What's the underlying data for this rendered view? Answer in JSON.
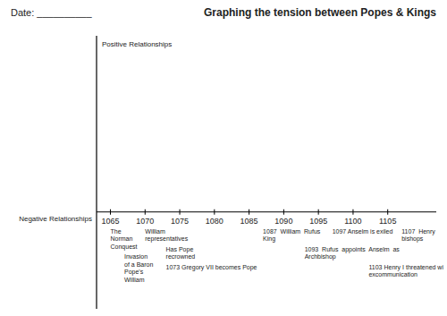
{
  "chart_data": {
    "type": "timeline",
    "title": "Graphing the tension between Popes & Kings",
    "subtitle": "Date: __________",
    "positive_label": "Positive Relationships",
    "negative_label": "Negative Relationships",
    "xlim": [
      1063,
      1112
    ],
    "xticks": [
      1065,
      1070,
      1075,
      1080,
      1085,
      1090,
      1095,
      1100,
      1105
    ],
    "ylim": [
      -0.55,
      1.0
    ],
    "tick_labels": "x",
    "color": "#000000",
    "annotations": [
      {
        "x": 1065,
        "text": "The\nNorman\nConquest"
      },
      {
        "x": 1067,
        "text": "Invasion\nof a Baron\nPope's\nWilliam"
      },
      {
        "x": 1070,
        "text": "William\nrepresentatives"
      },
      {
        "x": 1073,
        "text": "Has Pope\nrecrowned"
      },
      {
        "x": 1073,
        "text": "1073 Gregory VII becomes Pope"
      },
      {
        "x": 1087,
        "text": "1087  William  Rufus\nKing"
      },
      {
        "x": 1093,
        "text": "1093  Rufus  appoints  Anselm  as\nArchbishop"
      },
      {
        "x": 1097,
        "text": "1097 Anselm is exiled"
      },
      {
        "x": 1103,
        "text": "1103 Henry I threatened wi\nexcommunication"
      },
      {
        "x": 1107,
        "text": "1107  Henry\nbishops"
      }
    ]
  }
}
